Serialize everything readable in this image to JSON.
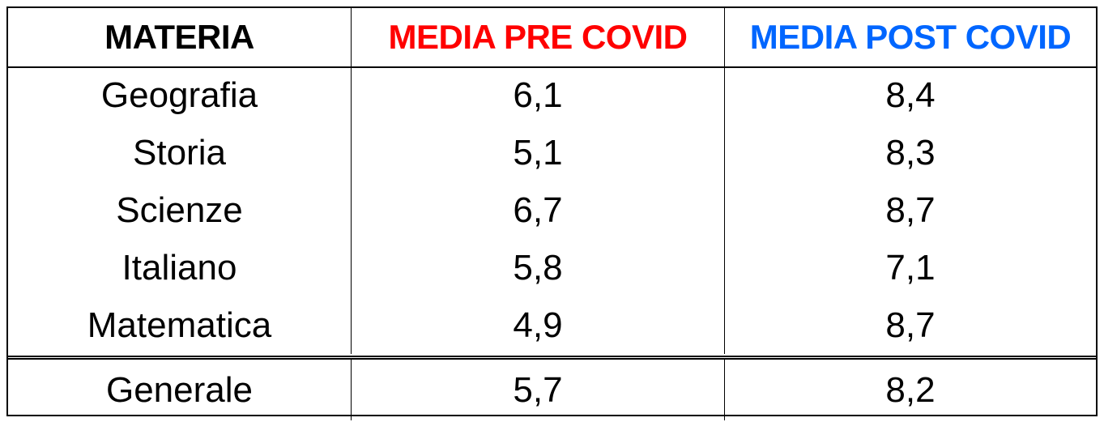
{
  "chart_data": {
    "type": "table",
    "columns": [
      "MATERIA",
      "MEDIA PRE COVID",
      "MEDIA POST COVID"
    ],
    "column_colors": [
      "#000000",
      "#ff0000",
      "#0066ff"
    ],
    "rows": [
      [
        "Geografia",
        "6,1",
        "8,4"
      ],
      [
        "Storia",
        "5,1",
        "8,3"
      ],
      [
        "Scienze",
        "6,7",
        "8,7"
      ],
      [
        "Italiano",
        "5,8",
        "7,1"
      ],
      [
        "Matematica",
        "4,9",
        "8,7"
      ]
    ],
    "total_row": [
      "Generale",
      "5,7",
      "8,2"
    ]
  }
}
